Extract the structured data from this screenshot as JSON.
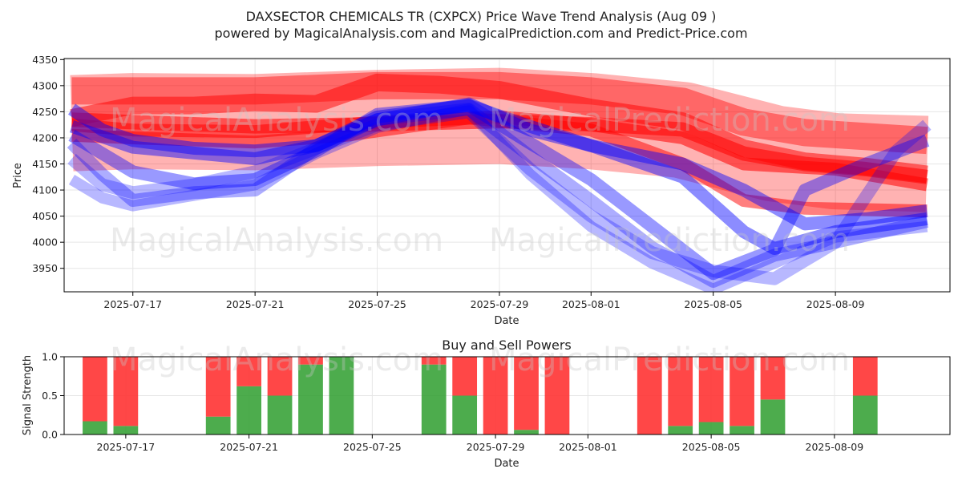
{
  "title_line1": "DAXSECTOR CHEMICALS TR (CXPCX) Price Wave Trend Analysis (Aug 09 )",
  "title_line2": "powered by MagicalAnalysis.com and MagicalPrediction.com and Predict-Price.com",
  "watermarks": [
    "MagicalAnalysis.com",
    "MagicalPrediction.com"
  ],
  "colors": {
    "red": "#ff0000",
    "blue": "#0000ff",
    "buy": "#2e9e2e",
    "sell": "#ff3333"
  },
  "chart_data": [
    {
      "type": "area",
      "xlabel": "Date",
      "ylabel": "Price",
      "ylim": [
        3905,
        4352
      ],
      "xlim": [
        "2025-07-14T18:00",
        "2025-08-12T18:00"
      ],
      "xticks": [
        "2025-07-17",
        "2025-07-21",
        "2025-07-25",
        "2025-07-29",
        "2025-08-01",
        "2025-08-05",
        "2025-08-09"
      ],
      "yticks": [
        3950,
        4000,
        4050,
        4100,
        4150,
        4200,
        4250,
        4300,
        4350
      ],
      "grid": true,
      "red_bands": [
        {
          "width": 18,
          "opacity": 0.55,
          "points": [
            [
              "2025-07-15",
              4235
            ],
            [
              "2025-07-17",
              4230
            ],
            [
              "2025-07-21",
              4222
            ],
            [
              "2025-07-25",
              4226
            ],
            [
              "2025-07-29",
              4232
            ],
            [
              "2025-08-01",
              4226
            ],
            [
              "2025-08-04",
              4216
            ],
            [
              "2025-08-06",
              4170
            ],
            [
              "2025-08-08",
              4150
            ],
            [
              "2025-08-10",
              4140
            ],
            [
              "2025-08-12",
              4125
            ]
          ]
        },
        {
          "width": 16,
          "opacity": 0.5,
          "points": [
            [
              "2025-07-15",
              4205
            ],
            [
              "2025-07-17",
              4200
            ],
            [
              "2025-07-21",
              4192
            ],
            [
              "2025-07-24",
              4205
            ],
            [
              "2025-07-28",
              4238
            ],
            [
              "2025-08-01",
              4215
            ],
            [
              "2025-08-04",
              4150
            ],
            [
              "2025-08-06",
              4080
            ],
            [
              "2025-08-08",
              4065
            ],
            [
              "2025-08-12",
              4060
            ]
          ]
        },
        {
          "width": 16,
          "opacity": 0.55,
          "points": [
            [
              "2025-07-15",
              4225
            ],
            [
              "2025-07-17",
              4215
            ],
            [
              "2025-07-21",
              4212
            ],
            [
              "2025-07-25",
              4230
            ],
            [
              "2025-07-29",
              4240
            ],
            [
              "2025-08-01",
              4225
            ],
            [
              "2025-08-04",
              4200
            ],
            [
              "2025-08-06",
              4150
            ],
            [
              "2025-08-09",
              4140
            ],
            [
              "2025-08-12",
              4110
            ]
          ]
        },
        {
          "width": 22,
          "opacity": 0.5,
          "points": [
            [
              "2025-07-15",
              4238
            ],
            [
              "2025-07-17",
              4262
            ],
            [
              "2025-07-19",
              4262
            ],
            [
              "2025-07-21",
              4268
            ],
            [
              "2025-07-23",
              4265
            ],
            [
              "2025-07-25",
              4306
            ],
            [
              "2025-07-27",
              4302
            ],
            [
              "2025-07-29",
              4292
            ],
            [
              "2025-08-01",
              4258
            ],
            [
              "2025-08-04",
              4232
            ],
            [
              "2025-08-06",
              4180
            ],
            [
              "2025-08-08",
              4155
            ],
            [
              "2025-08-10",
              4145
            ],
            [
              "2025-08-12",
              4130
            ]
          ]
        },
        {
          "width": 34,
          "opacity": 0.42,
          "points": [
            [
              "2025-07-15",
              4290
            ],
            [
              "2025-07-17",
              4290
            ],
            [
              "2025-07-21",
              4290
            ],
            [
              "2025-07-25",
              4300
            ],
            [
              "2025-07-29",
              4300
            ],
            [
              "2025-08-01",
              4290
            ],
            [
              "2025-08-04",
              4270
            ],
            [
              "2025-08-06",
              4230
            ],
            [
              "2025-08-08",
              4210
            ],
            [
              "2025-08-12",
              4195
            ]
          ]
        },
        {
          "width": 120,
          "opacity": 0.3,
          "points": [
            [
              "2025-07-15",
              4228
            ],
            [
              "2025-07-17",
              4232
            ],
            [
              "2025-07-21",
              4230
            ],
            [
              "2025-07-25",
              4238
            ],
            [
              "2025-07-29",
              4242
            ],
            [
              "2025-08-01",
              4232
            ],
            [
              "2025-08-04",
              4215
            ],
            [
              "2025-08-07",
              4170
            ],
            [
              "2025-08-09",
              4155
            ],
            [
              "2025-08-12",
              4150
            ]
          ]
        }
      ],
      "blue_bands": [
        {
          "width": 16,
          "opacity": 0.45,
          "points": [
            [
              "2025-07-15",
              4255
            ],
            [
              "2025-07-16",
              4215
            ],
            [
              "2025-07-17",
              4195
            ],
            [
              "2025-07-19",
              4180
            ],
            [
              "2025-07-21",
              4175
            ],
            [
              "2025-07-23",
              4185
            ],
            [
              "2025-07-25",
              4235
            ],
            [
              "2025-07-28",
              4265
            ],
            [
              "2025-07-30",
              4215
            ],
            [
              "2025-08-01",
              4185
            ],
            [
              "2025-08-04",
              4150
            ],
            [
              "2025-08-06",
              4100
            ],
            [
              "2025-08-08",
              4035
            ],
            [
              "2025-08-10",
              4045
            ],
            [
              "2025-08-12",
              4060
            ]
          ]
        },
        {
          "width": 16,
          "opacity": 0.45,
          "points": [
            [
              "2025-07-15",
              4222
            ],
            [
              "2025-07-17",
              4182
            ],
            [
              "2025-07-21",
              4160
            ],
            [
              "2025-07-23",
              4185
            ],
            [
              "2025-07-25",
              4240
            ],
            [
              "2025-07-28",
              4262
            ],
            [
              "2025-07-30",
              4222
            ],
            [
              "2025-08-01",
              4185
            ],
            [
              "2025-08-04",
              4125
            ],
            [
              "2025-08-06",
              4020
            ],
            [
              "2025-08-07",
              3988
            ],
            [
              "2025-08-09",
              4020
            ],
            [
              "2025-08-12",
              4045
            ]
          ]
        },
        {
          "width": 16,
          "opacity": 0.4,
          "points": [
            [
              "2025-07-15",
              4205
            ],
            [
              "2025-07-16",
              4170
            ],
            [
              "2025-07-17",
              4135
            ],
            [
              "2025-07-19",
              4112
            ],
            [
              "2025-07-21",
              4120
            ],
            [
              "2025-07-23",
              4175
            ],
            [
              "2025-07-25",
              4245
            ],
            [
              "2025-07-28",
              4262
            ],
            [
              "2025-07-30",
              4190
            ],
            [
              "2025-08-01",
              4120
            ],
            [
              "2025-08-03",
              4030
            ],
            [
              "2025-08-05",
              3940
            ],
            [
              "2025-08-07",
              3985
            ],
            [
              "2025-08-08",
              4100
            ],
            [
              "2025-08-10",
              4150
            ],
            [
              "2025-08-12",
              4195
            ]
          ]
        },
        {
          "width": 16,
          "opacity": 0.32,
          "points": [
            [
              "2025-07-15",
              4190
            ],
            [
              "2025-07-16",
              4130
            ],
            [
              "2025-07-17",
              4080
            ],
            [
              "2025-07-19",
              4095
            ],
            [
              "2025-07-21",
              4100
            ],
            [
              "2025-07-23",
              4180
            ],
            [
              "2025-07-25",
              4235
            ],
            [
              "2025-07-28",
              4255
            ],
            [
              "2025-07-30",
              4165
            ],
            [
              "2025-08-01",
              4080
            ],
            [
              "2025-08-03",
              3990
            ],
            [
              "2025-08-05",
              3925
            ],
            [
              "2025-08-07",
              3975
            ],
            [
              "2025-08-09",
              4000
            ],
            [
              "2025-08-12",
              4040
            ]
          ]
        },
        {
          "width": 16,
          "opacity": 0.28,
          "points": [
            [
              "2025-07-15",
              4160
            ],
            [
              "2025-07-16",
              4110
            ],
            [
              "2025-07-17",
              4095
            ],
            [
              "2025-07-19",
              4110
            ],
            [
              "2025-07-21",
              4135
            ],
            [
              "2025-07-23",
              4180
            ],
            [
              "2025-07-25",
              4225
            ],
            [
              "2025-07-28",
              4250
            ],
            [
              "2025-07-30",
              4140
            ],
            [
              "2025-08-01",
              4050
            ],
            [
              "2025-08-03",
              3980
            ],
            [
              "2025-08-05",
              3945
            ],
            [
              "2025-08-07",
              3930
            ],
            [
              "2025-08-09",
              4000
            ],
            [
              "2025-08-11",
              4175
            ],
            [
              "2025-08-12",
              4225
            ]
          ]
        },
        {
          "width": 14,
          "opacity": 0.28,
          "points": [
            [
              "2025-07-15",
              4120
            ],
            [
              "2025-07-16",
              4085
            ],
            [
              "2025-07-17",
              4070
            ],
            [
              "2025-07-19",
              4090
            ],
            [
              "2025-07-21",
              4110
            ],
            [
              "2025-07-23",
              4170
            ],
            [
              "2025-07-25",
              4220
            ],
            [
              "2025-07-28",
              4255
            ],
            [
              "2025-07-30",
              4130
            ],
            [
              "2025-08-01",
              4030
            ],
            [
              "2025-08-03",
              3960
            ],
            [
              "2025-08-05",
              3910
            ],
            [
              "2025-08-07",
              3960
            ],
            [
              "2025-08-09",
              4010
            ],
            [
              "2025-08-12",
              4030
            ]
          ]
        }
      ]
    },
    {
      "type": "bar",
      "title": "Buy and Sell Powers",
      "xlabel": "Date",
      "ylabel": "Signal Strength",
      "ylim": [
        0,
        1.0
      ],
      "yticks": [
        0.0,
        0.5,
        1.0
      ],
      "xticks": [
        "2025-07-17",
        "2025-07-21",
        "2025-07-25",
        "2025-07-29",
        "2025-08-01",
        "2025-08-05",
        "2025-08-09"
      ],
      "xlim": [
        "2025-07-15T00:00",
        "2025-08-12T18:00"
      ],
      "series": [
        {
          "name": "",
          "values": [
            0.17,
            0.11,
            0.23,
            0.62,
            0.5,
            0.9,
            1.0,
            0.9,
            0.5,
            0.0,
            0.06,
            0.0,
            0.0,
            0.11,
            0.16,
            0.11,
            0.45,
            0.5
          ]
        },
        {
          "name": "",
          "values": [
            0.83,
            0.89,
            0.77,
            0.38,
            0.5,
            0.1,
            0.0,
            0.1,
            0.5,
            1.0,
            0.94,
            1.0,
            1.0,
            0.89,
            0.84,
            0.89,
            0.55,
            0.5
          ]
        }
      ],
      "x": [
        "2025-07-16",
        "2025-07-17",
        "2025-07-20",
        "2025-07-21",
        "2025-07-22",
        "2025-07-23",
        "2025-07-24",
        "2025-07-27",
        "2025-07-28",
        "2025-07-29",
        "2025-07-30",
        "2025-07-31",
        "2025-08-03",
        "2025-08-04",
        "2025-08-05",
        "2025-08-06",
        "2025-08-07",
        "2025-08-10"
      ]
    }
  ]
}
